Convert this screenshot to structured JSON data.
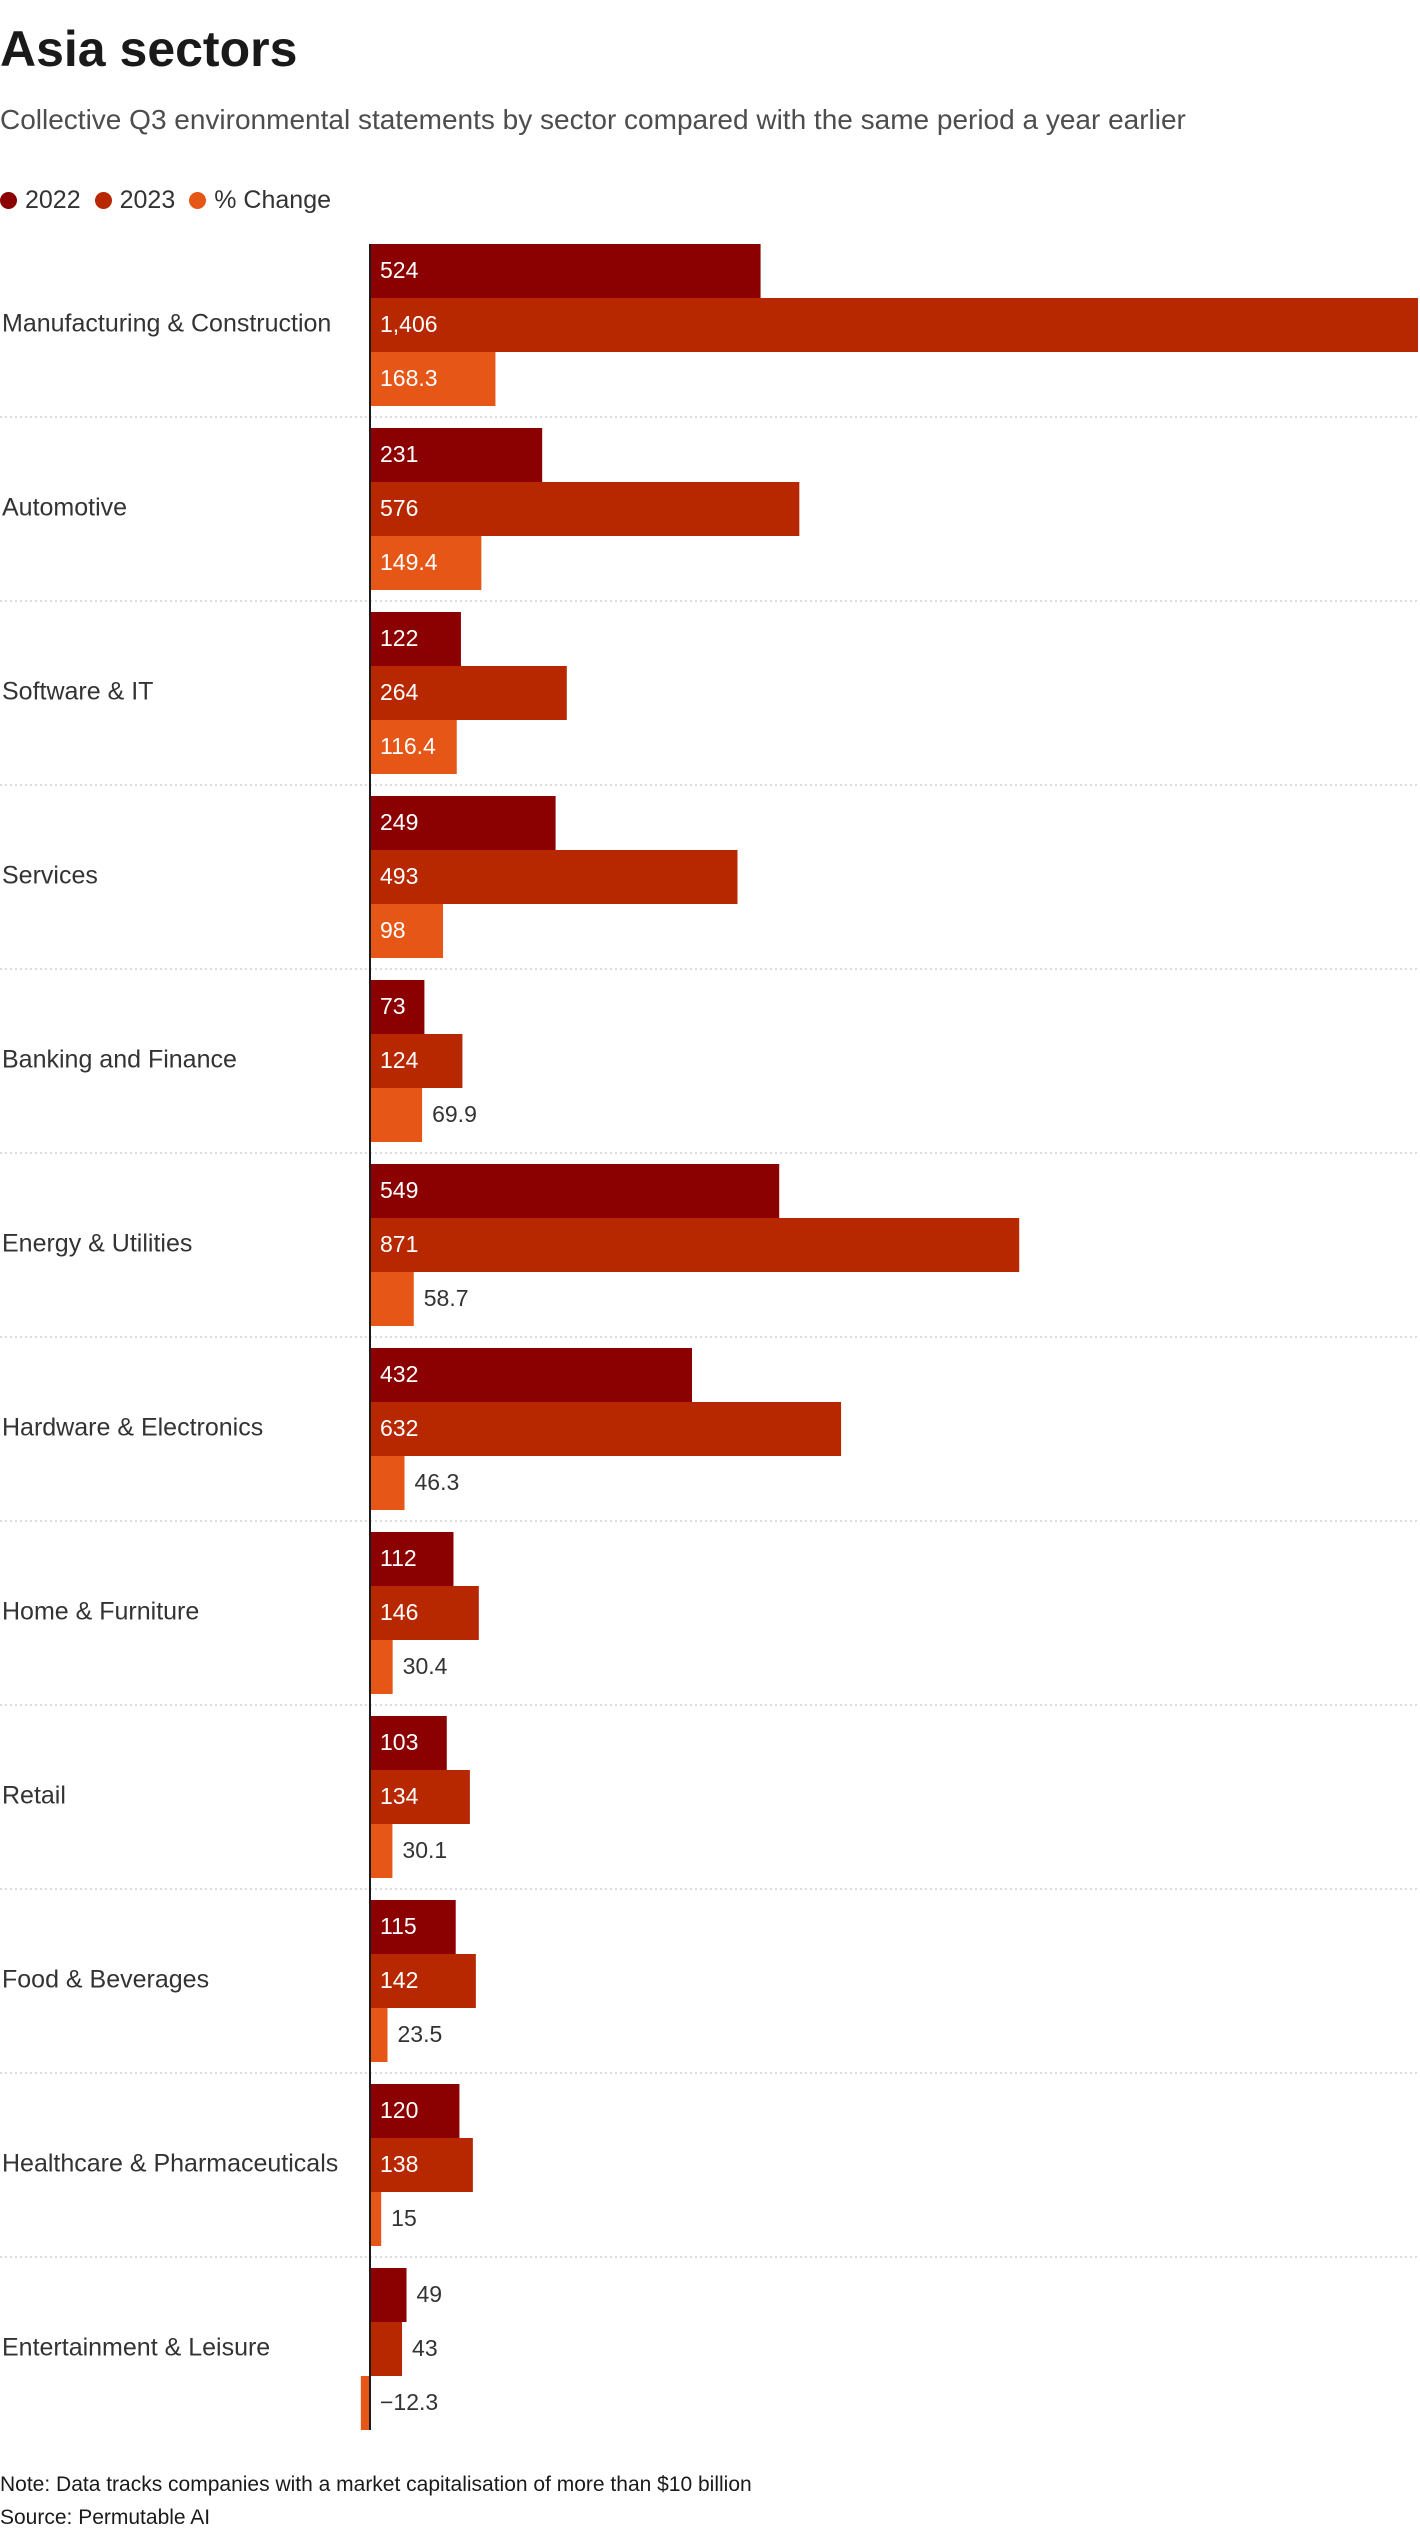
{
  "chart_data": {
    "type": "bar",
    "orientation": "horizontal",
    "title": "Asia sectors",
    "subtitle": "Collective Q3 environmental statements by sector compared with the same period a year earlier",
    "categories": [
      "Manufacturing & Construction",
      "Automotive",
      "Software & IT",
      "Services",
      "Banking and Finance",
      "Energy & Utilities",
      "Hardware & Electronics",
      "Home & Furniture",
      "Retail",
      "Food & Beverages",
      "Healthcare & Pharmaceuticals",
      "Entertainment & Leisure"
    ],
    "series": [
      {
        "name": "2022",
        "color": "#8b0000",
        "values": [
          524,
          231,
          122,
          249,
          73,
          549,
          432,
          112,
          103,
          115,
          120,
          49
        ],
        "labels": [
          "524",
          "231",
          "122",
          "249",
          "73",
          "549",
          "432",
          "112",
          "103",
          "115",
          "120",
          "49"
        ]
      },
      {
        "name": "2023",
        "color": "#b72700",
        "values": [
          1406,
          576,
          264,
          493,
          124,
          871,
          632,
          146,
          134,
          142,
          138,
          43
        ],
        "labels": [
          "1,406",
          "576",
          "264",
          "493",
          "124",
          "871",
          "632",
          "146",
          "134",
          "142",
          "138",
          "43"
        ]
      },
      {
        "name": "% Change",
        "color": "#e55617",
        "values": [
          168.3,
          149.4,
          116.4,
          98,
          69.9,
          58.7,
          46.3,
          30.4,
          30.1,
          23.5,
          15,
          -12.3
        ],
        "labels": [
          "168.3",
          "149.4",
          "116.4",
          "98",
          "69.9",
          "58.7",
          "46.3",
          "30.4",
          "30.1",
          "23.5",
          "15",
          "−12.3"
        ]
      }
    ],
    "xlim": [
      -12.3,
      1406
    ],
    "grid": false,
    "legend_position": "top-left"
  },
  "note": "Note: Data tracks companies with a market capitalisation of more than $10 billion",
  "source": "Source: Permutable AI"
}
